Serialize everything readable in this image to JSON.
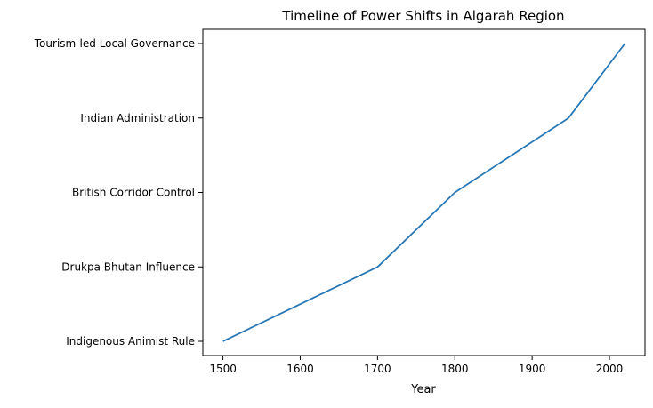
{
  "chart_data": {
    "type": "line",
    "title": "Timeline of Power Shifts in Algarah Region",
    "xlabel": "Year",
    "ylabel": "",
    "x": [
      1500,
      1700,
      1800,
      1947,
      2020
    ],
    "categories": [
      "Indigenous Animist Rule",
      "Drukpa Bhutan Influence",
      "British Corridor Control",
      "Indian Administration",
      "Tourism-led Local Governance"
    ],
    "series": [
      {
        "values": [
          "Indigenous Animist Rule",
          "Drukpa Bhutan Influence",
          "British Corridor Control",
          "Indian Administration",
          "Tourism-led Local Governance"
        ]
      }
    ],
    "xticks": [
      1500,
      1600,
      1700,
      1800,
      1900,
      2000
    ],
    "xlim": [
      1474,
      2046
    ],
    "grid": false,
    "legend": "none",
    "colors": {
      "line": "#2878b5",
      "axis": "#000000"
    }
  }
}
